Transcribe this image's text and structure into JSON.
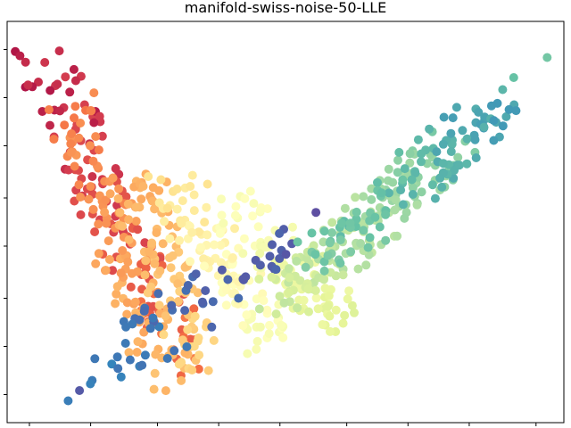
{
  "chart_data": {
    "type": "scatter",
    "title": "manifold-swiss-noise-50-LLE",
    "xlabel": "",
    "ylabel": "",
    "x_ticks_visible": true,
    "y_ticks_visible": true,
    "tick_labels_visible": false,
    "grid": false,
    "colormap": "Spectral",
    "xlim": [
      0,
      100
    ],
    "ylim": [
      0,
      100
    ],
    "color_stops": [
      "#9e0142",
      "#d53e4f",
      "#f46d43",
      "#fdae61",
      "#fee08b",
      "#ffffbf",
      "#e6f598",
      "#abdda4",
      "#66c2a5",
      "#3288bd",
      "#5e4fa2"
    ],
    "description_free_clusters": [
      {
        "x0": 5,
        "y0": 93,
        "x1": 32,
        "y1": 15,
        "t0": 0.0,
        "t1": 0.25,
        "n": 120
      },
      {
        "x0": 10,
        "y0": 80,
        "x1": 30,
        "y1": 10,
        "t0": 0.2,
        "t1": 0.35,
        "n": 110
      },
      {
        "x0": 22,
        "y0": 62,
        "x1": 34,
        "y1": 15,
        "t0": 0.28,
        "t1": 0.4,
        "n": 90
      },
      {
        "x0": 30,
        "y0": 58,
        "x1": 48,
        "y1": 20,
        "t0": 0.4,
        "t1": 0.55,
        "n": 110
      },
      {
        "x0": 40,
        "y0": 55,
        "x1": 60,
        "y1": 25,
        "t0": 0.48,
        "t1": 0.62,
        "n": 90
      },
      {
        "x0": 14,
        "y0": 10,
        "x1": 52,
        "y1": 48,
        "t0": 0.9,
        "t1": 1.0,
        "n": 60
      },
      {
        "x0": 48,
        "y0": 30,
        "x1": 80,
        "y1": 68,
        "t0": 0.6,
        "t1": 0.78,
        "n": 150
      },
      {
        "x0": 55,
        "y0": 40,
        "x1": 90,
        "y1": 80,
        "t0": 0.75,
        "t1": 0.88,
        "n": 110
      }
    ],
    "outliers": [
      {
        "x": 97,
        "y": 91,
        "t": 0.78
      },
      {
        "x": 13,
        "y": 8,
        "t": 0.98
      },
      {
        "x": 91,
        "y": 86,
        "t": 0.8
      },
      {
        "x": 89,
        "y": 83,
        "t": 0.82
      }
    ]
  }
}
